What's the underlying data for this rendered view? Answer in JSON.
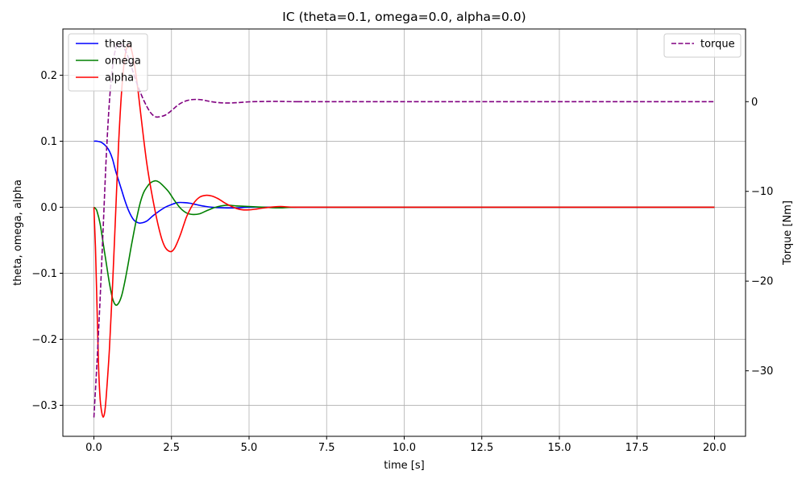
{
  "chart_data": {
    "type": "line",
    "title": "IC (theta=0.1, omega=0.0, alpha=0.0)",
    "xlabel": "time [s]",
    "ylabel": "theta, omega, alpha",
    "y2label": "Torque [Nm]",
    "xlim": [
      -1.0,
      21.0
    ],
    "ylim": [
      -0.347,
      0.27
    ],
    "y2lim": [
      -37.3,
      8.1
    ],
    "xticks": [
      0.0,
      2.5,
      5.0,
      7.5,
      10.0,
      12.5,
      15.0,
      17.5,
      20.0
    ],
    "xtick_labels": [
      "0.0",
      "2.5",
      "5.0",
      "7.5",
      "10.0",
      "12.5",
      "15.0",
      "17.5",
      "20.0"
    ],
    "yticks": [
      -0.3,
      -0.2,
      -0.1,
      0.0,
      0.1,
      0.2
    ],
    "ytick_labels": [
      "−0.3",
      "−0.2",
      "−0.1",
      "0.0",
      "0.1",
      "0.2"
    ],
    "y2ticks": [
      -30,
      -20,
      -10,
      0
    ],
    "y2tick_labels": [
      "−30",
      "−20",
      "−10",
      "0"
    ],
    "grid": true,
    "legend_left": {
      "placement": "top-left",
      "entries": [
        "theta",
        "omega",
        "alpha"
      ]
    },
    "legend_right": {
      "placement": "top-right",
      "entries": [
        "torque"
      ]
    },
    "series": [
      {
        "name": "theta",
        "axis": "left",
        "color": "#0000ff",
        "dash": "solid",
        "points": [
          [
            0,
            0.1
          ],
          [
            0.1,
            0.1
          ],
          [
            0.25,
            0.098
          ],
          [
            0.4,
            0.092
          ],
          [
            0.5,
            0.085
          ],
          [
            0.6,
            0.073
          ],
          [
            0.7,
            0.055
          ],
          [
            0.8,
            0.04
          ],
          [
            0.9,
            0.025
          ],
          [
            1.0,
            0.01
          ],
          [
            1.1,
            -0.003
          ],
          [
            1.2,
            -0.013
          ],
          [
            1.3,
            -0.02
          ],
          [
            1.4,
            -0.023
          ],
          [
            1.5,
            -0.024
          ],
          [
            1.7,
            -0.021
          ],
          [
            1.9,
            -0.013
          ],
          [
            2.1,
            -0.006
          ],
          [
            2.3,
            0.0
          ],
          [
            2.5,
            0.004
          ],
          [
            2.7,
            0.007
          ],
          [
            2.9,
            0.007
          ],
          [
            3.1,
            0.006
          ],
          [
            3.3,
            0.004
          ],
          [
            3.5,
            0.002
          ],
          [
            3.8,
            0.0
          ],
          [
            4.2,
            -0.001
          ],
          [
            4.6,
            -0.001
          ],
          [
            5.0,
            0.0
          ],
          [
            6.0,
            0.0
          ],
          [
            8.0,
            0.0
          ],
          [
            20.0,
            0.0
          ]
        ]
      },
      {
        "name": "omega",
        "axis": "left",
        "color": "#008000",
        "dash": "solid",
        "points": [
          [
            0,
            0.0
          ],
          [
            0.05,
            -0.002
          ],
          [
            0.1,
            -0.006
          ],
          [
            0.2,
            -0.025
          ],
          [
            0.3,
            -0.055
          ],
          [
            0.4,
            -0.085
          ],
          [
            0.5,
            -0.115
          ],
          [
            0.6,
            -0.138
          ],
          [
            0.7,
            -0.148
          ],
          [
            0.8,
            -0.145
          ],
          [
            0.9,
            -0.133
          ],
          [
            1.0,
            -0.112
          ],
          [
            1.1,
            -0.087
          ],
          [
            1.2,
            -0.06
          ],
          [
            1.3,
            -0.035
          ],
          [
            1.4,
            -0.012
          ],
          [
            1.5,
            0.008
          ],
          [
            1.6,
            0.022
          ],
          [
            1.7,
            0.03
          ],
          [
            1.8,
            0.036
          ],
          [
            1.9,
            0.039
          ],
          [
            2.0,
            0.04
          ],
          [
            2.1,
            0.038
          ],
          [
            2.2,
            0.034
          ],
          [
            2.4,
            0.024
          ],
          [
            2.6,
            0.01
          ],
          [
            2.8,
            -0.002
          ],
          [
            3.0,
            -0.009
          ],
          [
            3.2,
            -0.011
          ],
          [
            3.4,
            -0.01
          ],
          [
            3.6,
            -0.006
          ],
          [
            3.8,
            -0.002
          ],
          [
            4.0,
            0.001
          ],
          [
            4.3,
            0.003
          ],
          [
            4.6,
            0.002
          ],
          [
            5.0,
            0.001
          ],
          [
            5.5,
            0.0
          ],
          [
            6.0,
            -0.001
          ],
          [
            6.5,
            0.0
          ],
          [
            8.0,
            0.0
          ],
          [
            20.0,
            0.0
          ]
        ]
      },
      {
        "name": "alpha",
        "axis": "left",
        "color": "#ff0000",
        "dash": "solid",
        "points": [
          [
            0,
            0.0
          ],
          [
            0.05,
            -0.06
          ],
          [
            0.1,
            -0.15
          ],
          [
            0.15,
            -0.24
          ],
          [
            0.2,
            -0.29
          ],
          [
            0.25,
            -0.31
          ],
          [
            0.3,
            -0.318
          ],
          [
            0.35,
            -0.31
          ],
          [
            0.4,
            -0.285
          ],
          [
            0.5,
            -0.215
          ],
          [
            0.6,
            -0.12
          ],
          [
            0.7,
            -0.01
          ],
          [
            0.8,
            0.1
          ],
          [
            0.9,
            0.18
          ],
          [
            1.0,
            0.228
          ],
          [
            1.1,
            0.245
          ],
          [
            1.2,
            0.24
          ],
          [
            1.3,
            0.218
          ],
          [
            1.4,
            0.185
          ],
          [
            1.5,
            0.145
          ],
          [
            1.6,
            0.105
          ],
          [
            1.7,
            0.068
          ],
          [
            1.8,
            0.038
          ],
          [
            1.9,
            0.012
          ],
          [
            2.0,
            -0.012
          ],
          [
            2.1,
            -0.033
          ],
          [
            2.2,
            -0.05
          ],
          [
            2.3,
            -0.061
          ],
          [
            2.4,
            -0.066
          ],
          [
            2.5,
            -0.067
          ],
          [
            2.6,
            -0.062
          ],
          [
            2.7,
            -0.052
          ],
          [
            2.8,
            -0.04
          ],
          [
            2.9,
            -0.026
          ],
          [
            3.0,
            -0.013
          ],
          [
            3.2,
            0.005
          ],
          [
            3.4,
            0.015
          ],
          [
            3.6,
            0.018
          ],
          [
            3.8,
            0.017
          ],
          [
            4.0,
            0.013
          ],
          [
            4.2,
            0.007
          ],
          [
            4.4,
            0.002
          ],
          [
            4.6,
            -0.002
          ],
          [
            4.8,
            -0.004
          ],
          [
            5.0,
            -0.004
          ],
          [
            5.2,
            -0.003
          ],
          [
            5.5,
            -0.001
          ],
          [
            6.0,
            0.001
          ],
          [
            6.5,
            0.0
          ],
          [
            8.0,
            0.0
          ],
          [
            20.0,
            0.0
          ]
        ]
      },
      {
        "name": "torque",
        "axis": "right",
        "color": "#800080",
        "dash": "dashed",
        "points": [
          [
            0,
            -35.2
          ],
          [
            0.1,
            -29.0
          ],
          [
            0.2,
            -22.0
          ],
          [
            0.3,
            -14.0
          ],
          [
            0.4,
            -6.0
          ],
          [
            0.5,
            0.0
          ],
          [
            0.6,
            3.8
          ],
          [
            0.7,
            5.9
          ],
          [
            0.8,
            6.4
          ],
          [
            0.9,
            6.3
          ],
          [
            1.0,
            5.8
          ],
          [
            1.1,
            5.0
          ],
          [
            1.2,
            4.0
          ],
          [
            1.3,
            2.9
          ],
          [
            1.4,
            1.9
          ],
          [
            1.5,
            1.0
          ],
          [
            1.6,
            0.2
          ],
          [
            1.7,
            -0.5
          ],
          [
            1.8,
            -1.1
          ],
          [
            1.9,
            -1.5
          ],
          [
            2.0,
            -1.7
          ],
          [
            2.1,
            -1.7
          ],
          [
            2.3,
            -1.5
          ],
          [
            2.5,
            -1.0
          ],
          [
            2.7,
            -0.4
          ],
          [
            2.9,
            0.0
          ],
          [
            3.1,
            0.2
          ],
          [
            3.3,
            0.25
          ],
          [
            3.5,
            0.2
          ],
          [
            3.7,
            0.05
          ],
          [
            4.0,
            -0.1
          ],
          [
            4.3,
            -0.15
          ],
          [
            4.6,
            -0.12
          ],
          [
            5.0,
            -0.02
          ],
          [
            5.5,
            0.02
          ],
          [
            6.0,
            0.03
          ],
          [
            6.5,
            0.0
          ],
          [
            8.0,
            0.0
          ],
          [
            20.0,
            0.0
          ]
        ]
      }
    ]
  }
}
